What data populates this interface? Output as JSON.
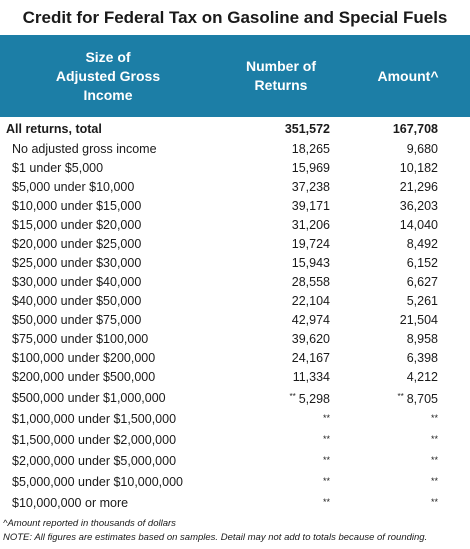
{
  "title": "Credit for Federal Tax on Gasoline and Special Fuels",
  "header": {
    "col1_lines": [
      "Size of",
      "Adjusted Gross",
      "Income"
    ],
    "col2_lines": [
      "Number of",
      "Returns"
    ],
    "col3_lines": [
      "Amount^"
    ]
  },
  "total": {
    "label": "All returns, total",
    "returns": "351,572",
    "amount": "167,708"
  },
  "rows": [
    {
      "label": "No adjusted gross income",
      "returns": "18,265",
      "amount": "9,680",
      "returns_flag": "",
      "amount_flag": ""
    },
    {
      "label": "$1 under $5,000",
      "returns": "15,969",
      "amount": "10,182",
      "returns_flag": "",
      "amount_flag": ""
    },
    {
      "label": "$5,000 under $10,000",
      "returns": "37,238",
      "amount": "21,296",
      "returns_flag": "",
      "amount_flag": ""
    },
    {
      "label": "$10,000 under $15,000",
      "returns": "39,171",
      "amount": "36,203",
      "returns_flag": "",
      "amount_flag": ""
    },
    {
      "label": "$15,000 under $20,000",
      "returns": "31,206",
      "amount": "14,040",
      "returns_flag": "",
      "amount_flag": ""
    },
    {
      "label": "$20,000 under $25,000",
      "returns": "19,724",
      "amount": "8,492",
      "returns_flag": "",
      "amount_flag": ""
    },
    {
      "label": "$25,000 under $30,000",
      "returns": "15,943",
      "amount": "6,152",
      "returns_flag": "",
      "amount_flag": ""
    },
    {
      "label": "$30,000 under $40,000",
      "returns": "28,558",
      "amount": "6,627",
      "returns_flag": "",
      "amount_flag": ""
    },
    {
      "label": "$40,000 under $50,000",
      "returns": "22,104",
      "amount": "5,261",
      "returns_flag": "",
      "amount_flag": ""
    },
    {
      "label": "$50,000 under $75,000",
      "returns": "42,974",
      "amount": "21,504",
      "returns_flag": "",
      "amount_flag": ""
    },
    {
      "label": "$75,000 under $100,000",
      "returns": "39,620",
      "amount": "8,958",
      "returns_flag": "",
      "amount_flag": ""
    },
    {
      "label": "$100,000 under $200,000",
      "returns": "24,167",
      "amount": "6,398",
      "returns_flag": "",
      "amount_flag": ""
    },
    {
      "label": "$200,000 under $500,000",
      "returns": "11,334",
      "amount": "4,212",
      "returns_flag": "",
      "amount_flag": ""
    },
    {
      "label": "$500,000 under $1,000,000",
      "returns": "5,298",
      "amount": "8,705",
      "returns_flag": "**",
      "amount_flag": "**"
    },
    {
      "label": "$1,000,000 under $1,500,000",
      "returns": "**",
      "amount": "**",
      "returns_flag": "",
      "amount_flag": ""
    },
    {
      "label": "$1,500,000 under $2,000,000",
      "returns": "**",
      "amount": "**",
      "returns_flag": "",
      "amount_flag": ""
    },
    {
      "label": "$2,000,000 under $5,000,000",
      "returns": "**",
      "amount": "**",
      "returns_flag": "",
      "amount_flag": ""
    },
    {
      "label": "$5,000,000 under $10,000,000",
      "returns": "**",
      "amount": "**",
      "returns_flag": "",
      "amount_flag": ""
    },
    {
      "label": "$10,000,000 or more",
      "returns": "**",
      "amount": "**",
      "returns_flag": "",
      "amount_flag": ""
    }
  ],
  "notes": [
    "^Amount reported in thousands of dollars",
    "NOTE: All figures are estimates based on samples. Detail may not add to totals because of rounding."
  ],
  "colors": {
    "header_bg": "#1c7ea6",
    "header_text": "#ffffff"
  }
}
